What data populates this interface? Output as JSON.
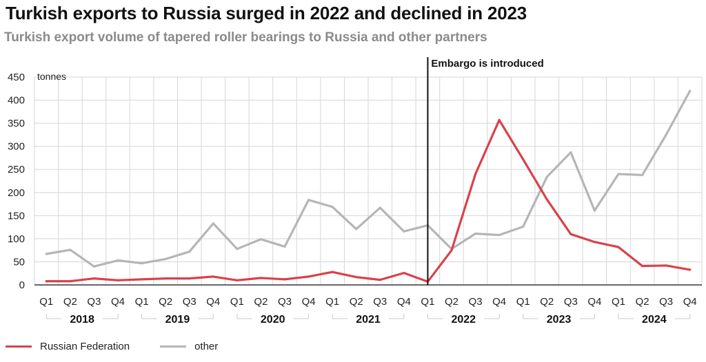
{
  "title": "Turkish exports to Russia surged in 2022 and declined in 2023",
  "subtitle": "Turkish export volume of tapered roller bearings to Russia and other partners",
  "colors": {
    "russia": "#d9414a",
    "other": "#b5b5b5",
    "grid": "#d6d6d6",
    "axis": "#333333"
  },
  "chart_data": {
    "type": "line",
    "ylabel": "tonnes",
    "ylim": [
      0,
      450
    ],
    "yticks": [
      0,
      50,
      100,
      150,
      200,
      250,
      300,
      350,
      400,
      450
    ],
    "grid": true,
    "legend_position": "bottom-left",
    "quarter_labels": [
      "Q1",
      "Q2",
      "Q3",
      "Q4",
      "Q1",
      "Q2",
      "Q3",
      "Q4",
      "Q1",
      "Q2",
      "Q3",
      "Q4",
      "Q1",
      "Q2",
      "Q3",
      "Q4",
      "Q1",
      "Q2",
      "Q3",
      "Q4",
      "Q1",
      "Q2",
      "Q3",
      "Q4",
      "Q1",
      "Q2",
      "Q3",
      "Q4"
    ],
    "year_labels": [
      "2018",
      "2019",
      "2020",
      "2021",
      "2022",
      "2023",
      "2024"
    ],
    "series": [
      {
        "name": "Russian Federation",
        "color": "#d9414a",
        "values": [
          8,
          8,
          14,
          10,
          12,
          14,
          14,
          18,
          10,
          15,
          12,
          18,
          28,
          17,
          11,
          26,
          7,
          75,
          240,
          357,
          272,
          185,
          110,
          93,
          82,
          41,
          42,
          33
        ]
      },
      {
        "name": "other",
        "color": "#b5b5b5",
        "values": [
          67,
          76,
          40,
          53,
          47,
          56,
          72,
          133,
          78,
          99,
          83,
          184,
          169,
          121,
          167,
          116,
          129,
          78,
          111,
          108,
          126,
          234,
          287,
          161,
          240,
          238,
          325,
          420
        ]
      }
    ],
    "annotation": {
      "label": "Embargo is introduced",
      "x_position": 16.5
    }
  }
}
